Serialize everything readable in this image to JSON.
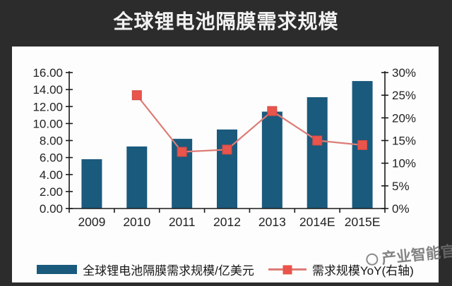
{
  "title": "全球锂电池隔膜需求规模",
  "watermark": {
    "text": "产业智能官"
  },
  "colors": {
    "background": "#2c2c2c",
    "panel": "#fdfdfd",
    "bar": "#1a5a7d",
    "line": "#dd7c76",
    "marker": "#e9544c",
    "marker_edge": "#cf4a44",
    "axis": "#1a1a1a",
    "axis_text": "#222222",
    "title_text": "#f2f2f2"
  },
  "chart_data": {
    "type": "bar",
    "subtype": "bar-line-combo",
    "title": "全球锂电池隔膜需求规模",
    "categories": [
      "2009",
      "2010",
      "2011",
      "2012",
      "2013",
      "2014E",
      "2015E"
    ],
    "series": [
      {
        "name": "全球锂电池隔膜需求规模/亿美元",
        "type": "bar",
        "axis": "left",
        "color": "#1a5a7d",
        "values": [
          5.8,
          7.3,
          8.2,
          9.3,
          11.4,
          13.1,
          15.0
        ]
      },
      {
        "name": "需求规模YoY(右轴)",
        "type": "line",
        "axis": "right",
        "color": "#e9544c",
        "line_color": "#dd7c76",
        "values": [
          null,
          25,
          12.5,
          13,
          21.5,
          15,
          14
        ]
      }
    ],
    "left_axis": {
      "min": 0,
      "max": 16,
      "step": 2,
      "format": "fixed2",
      "ticks": [
        "0.00",
        "2.00",
        "4.00",
        "6.00",
        "8.00",
        "10.00",
        "12.00",
        "14.00",
        "16.00"
      ]
    },
    "right_axis": {
      "min": 0,
      "max": 30,
      "step": 5,
      "format": "percent",
      "ticks": [
        "0%",
        "5%",
        "10%",
        "15%",
        "20%",
        "25%",
        "30%"
      ]
    },
    "grid": false,
    "legend_position": "bottom"
  }
}
